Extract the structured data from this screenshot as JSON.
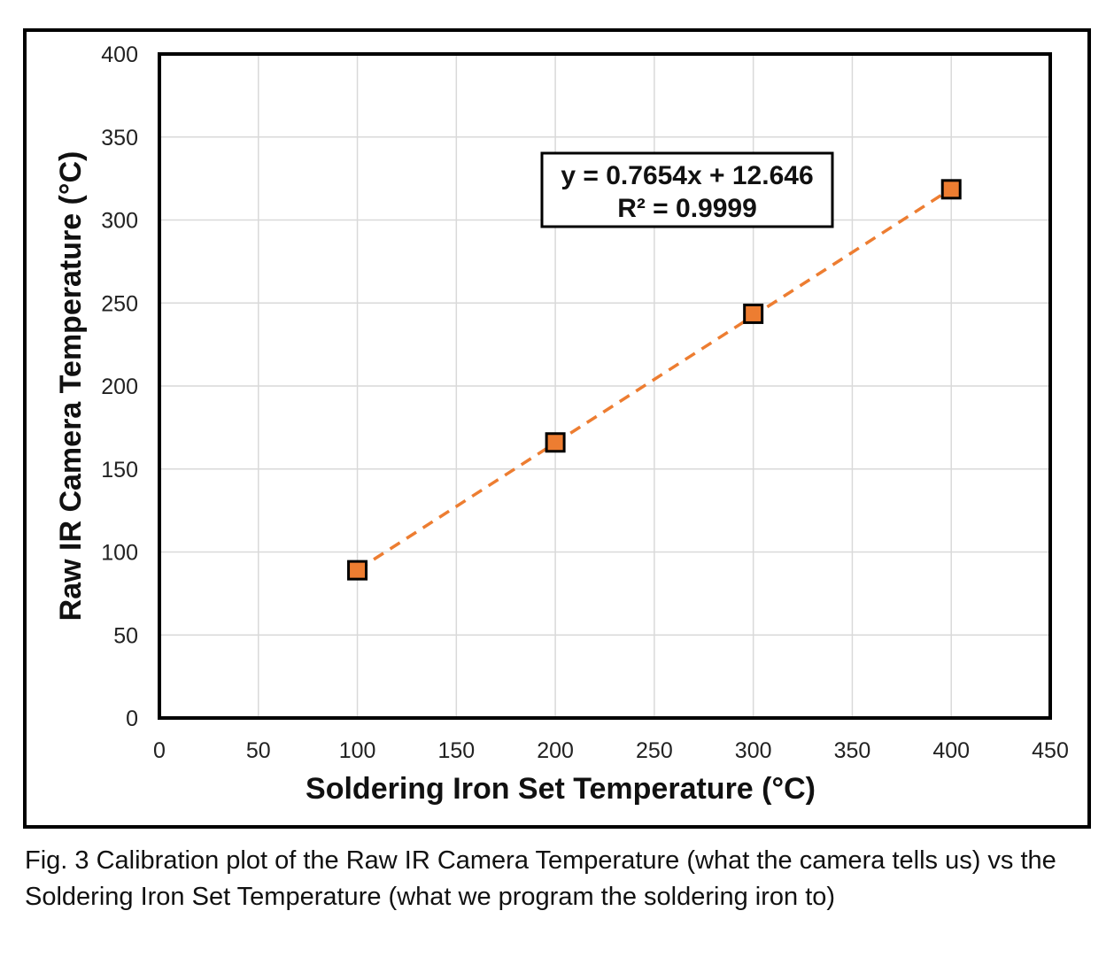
{
  "figure": {
    "caption": "Fig. 3 Calibration plot of the Raw IR Camera Temperature (what the camera tells us) vs the Soldering Iron Set Temperature (what we program the soldering iron to)"
  },
  "chart_data": {
    "type": "scatter",
    "title": "",
    "xlabel": "Soldering Iron Set Temperature (°C)",
    "ylabel": "Raw IR Camera Temperature (°C)",
    "xlim": [
      0,
      450
    ],
    "ylim": [
      0,
      400
    ],
    "xticks": [
      "0",
      "50",
      "100",
      "150",
      "200",
      "250",
      "300",
      "350",
      "400",
      "450"
    ],
    "yticks": [
      "0",
      "50",
      "100",
      "150",
      "200",
      "250",
      "300",
      "350",
      "400"
    ],
    "grid": true,
    "series": [
      {
        "x": [
          100,
          200,
          300,
          400
        ],
        "y": [
          89,
          166,
          243.5,
          318.5
        ],
        "marker": "square",
        "color": "#ED7D31"
      }
    ],
    "trendline": {
      "type": "linear",
      "slope": 0.7654,
      "intercept": 12.646,
      "x_range": [
        100,
        400
      ],
      "style": "dashed",
      "color": "#ED7D31",
      "equation": "y = 0.7654x + 12.646",
      "r_squared": "R² = 0.9999"
    }
  }
}
